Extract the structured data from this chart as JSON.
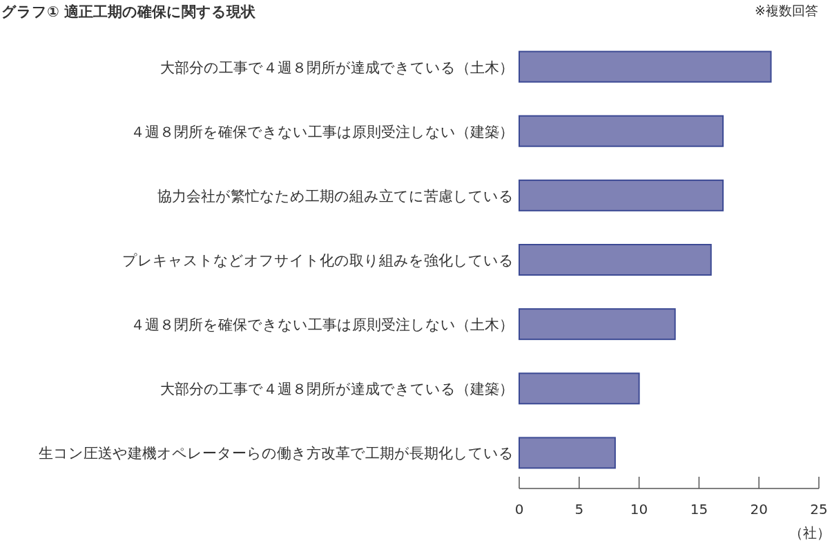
{
  "chart_data": {
    "type": "bar",
    "orientation": "horizontal",
    "title": "グラフ① 適正工期の確保に関する現状",
    "annotations": [
      "※複数回答"
    ],
    "xlabel": "（社）",
    "categories": [
      "大部分の工事で４週８閉所が達成できている（土木）",
      "４週８閉所を確保できない工事は原則受注しない（建築）",
      "協力会社が繁忙なため工期の組み立てに苦慮している",
      "プレキャストなどオフサイト化の取り組みを強化している",
      "４週８閉所を確保できない工事は原則受注しない（土木）",
      "大部分の工事で４週８閉所が達成できている（建築）",
      "生コン圧送や建機オペレーターらの働き方改革で工期が長期化している"
    ],
    "values": [
      21,
      17,
      17,
      16,
      13,
      10,
      8
    ],
    "color": "#7f82b5",
    "xlim": [
      0,
      25
    ],
    "xticks": [
      0,
      5,
      10,
      15,
      20,
      25
    ],
    "grid": false
  }
}
